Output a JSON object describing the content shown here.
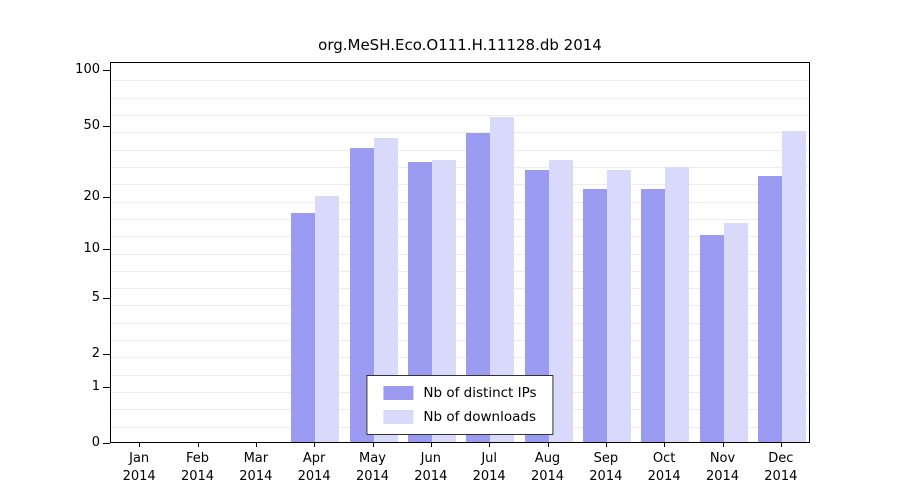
{
  "chart_data": {
    "type": "bar",
    "title": "org.MeSH.Eco.O111.H.11128.db 2014",
    "categories": [
      "Jan",
      "Feb",
      "Mar",
      "Apr",
      "May",
      "Jun",
      "Jul",
      "Aug",
      "Sep",
      "Oct",
      "Nov",
      "Dec"
    ],
    "year_label": "2014",
    "series": [
      {
        "name": "Nb of distinct IPs",
        "color": "#9b9bf2",
        "values": [
          0,
          0,
          0,
          16,
          37,
          31,
          45,
          28,
          22,
          22,
          12,
          26
        ]
      },
      {
        "name": "Nb of downloads",
        "color": "#d9d9fb",
        "values": [
          0,
          0,
          0,
          20,
          42,
          32,
          55,
          32,
          28,
          29,
          14,
          46
        ]
      }
    ],
    "yticks": [
      0,
      1,
      2,
      5,
      10,
      20,
      50,
      100
    ],
    "ylim": [
      0,
      100
    ],
    "yscale": "log10(value+1)",
    "xlabel": "",
    "ylabel": "",
    "grid": "on",
    "legend_position": "bottom-center"
  }
}
